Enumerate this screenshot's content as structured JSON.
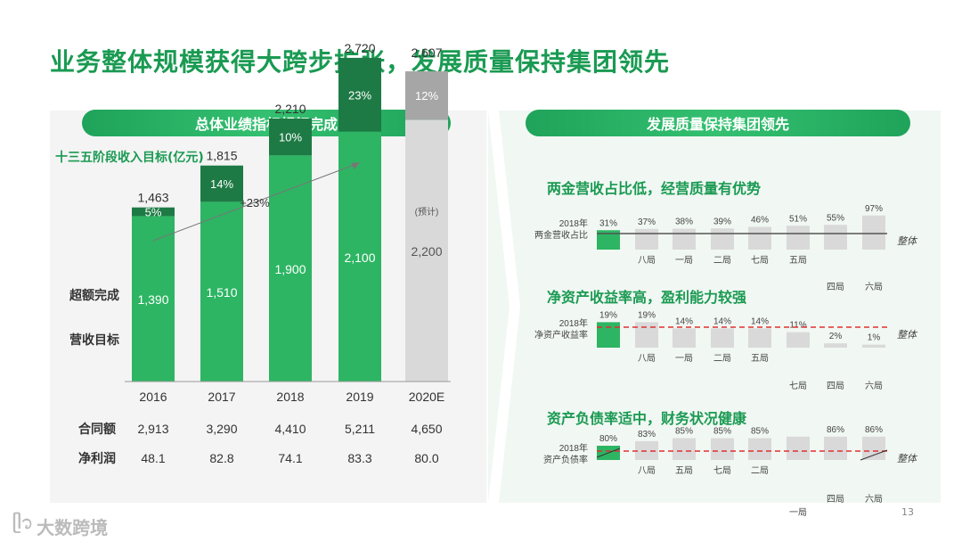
{
  "title": "业务整体规模获得大跨步扩张，发展质量保持集团领先",
  "left_panel": {
    "header": "总体业绩指标超额完成",
    "subtitle": "十三五阶段收入目标(亿元)",
    "growth_label": "+23%",
    "row_labels": {
      "excess": "超额完成",
      "target": "营收目标",
      "contract": "合同额",
      "profit": "净利润"
    },
    "forecast_note": "(预计)"
  },
  "right_panel": {
    "header": "发展质量保持集团领先",
    "sections": [
      {
        "heading": "两金营收占比低，经营质量有优势",
        "row_label_1": "2018年",
        "row_label_2": "两金营收占比",
        "overall_label": "整体"
      },
      {
        "heading": "净资产收益率高，盈利能力较强",
        "row_label_1": "2018年",
        "row_label_2": "净资产收益率",
        "overall_label": "整体"
      },
      {
        "heading": "资产负债率适中，财务状况健康",
        "row_label_1": "2018年",
        "row_label_2": "资产负债率",
        "overall_label": "整体"
      }
    ]
  },
  "page_number": "13",
  "logo_text": "大数跨境",
  "colors": {
    "green": "#2db563",
    "dark_green": "#1e7a45",
    "grey": "#d9d9d9",
    "dark_grey": "#a6a6a6",
    "red_dash": "#e03030"
  },
  "chart_data": [
    {
      "type": "bar",
      "title": "十三五阶段收入目标(亿元)",
      "categories": [
        "2016",
        "2017",
        "2018",
        "2019",
        "2020E"
      ],
      "series": [
        {
          "name": "营收目标",
          "values": [
            1390,
            1510,
            1900,
            2100,
            2200
          ],
          "value_labels": [
            "1,390",
            "1,510",
            "1,900",
            "2,100",
            "2,200"
          ]
        },
        {
          "name": "超额完成",
          "values": [
            73,
            305,
            310,
            620,
            407
          ],
          "value_labels": [
            "5%",
            "14%",
            "10%",
            "23%",
            "12%"
          ]
        }
      ],
      "totals": [
        "1,463",
        "1,815",
        "2,210",
        "2,720",
        "2,607"
      ],
      "contract_amount": [
        "2,913",
        "3,290",
        "4,410",
        "5,211",
        "4,650"
      ],
      "net_profit": [
        "48.1",
        "82.8",
        "74.1",
        "83.3",
        "80.0"
      ],
      "annotations": [
        "+23%",
        "(预计)"
      ]
    },
    {
      "type": "bar",
      "title": "两金营收占比低，经营质量有优势",
      "categories": [
        "",
        "八局",
        "一局",
        "二局",
        "七局",
        "五局",
        "四局",
        "六局"
      ],
      "values": [
        31,
        37,
        38,
        39,
        46,
        51,
        55,
        97
      ],
      "value_labels": [
        "31%",
        "37%",
        "38%",
        "39%",
        "46%",
        "51%",
        "55%",
        "97%"
      ],
      "reference_label": "整体"
    },
    {
      "type": "bar",
      "title": "净资产收益率高，盈利能力较强",
      "categories": [
        "",
        "八局",
        "一局",
        "二局",
        "五局",
        "七局",
        "四局",
        "六局"
      ],
      "values": [
        19,
        19,
        14,
        14,
        14,
        11,
        2,
        1
      ],
      "value_labels": [
        "19%",
        "19%",
        "14%",
        "14%",
        "14%",
        "11%",
        "2%",
        "1%"
      ],
      "reference_label": "整体"
    },
    {
      "type": "bar",
      "title": "资产负债率适中，财务状况健康",
      "categories": [
        "",
        "八局",
        "五局",
        "七局",
        "二局",
        "一局",
        "四局",
        "六局"
      ],
      "values": [
        80,
        83,
        85,
        85,
        85,
        86,
        86,
        86
      ],
      "value_labels": [
        "80%",
        "83%",
        "85%",
        "85%",
        "85%",
        "",
        "86%",
        "86%"
      ],
      "reference_label": "整体"
    }
  ]
}
